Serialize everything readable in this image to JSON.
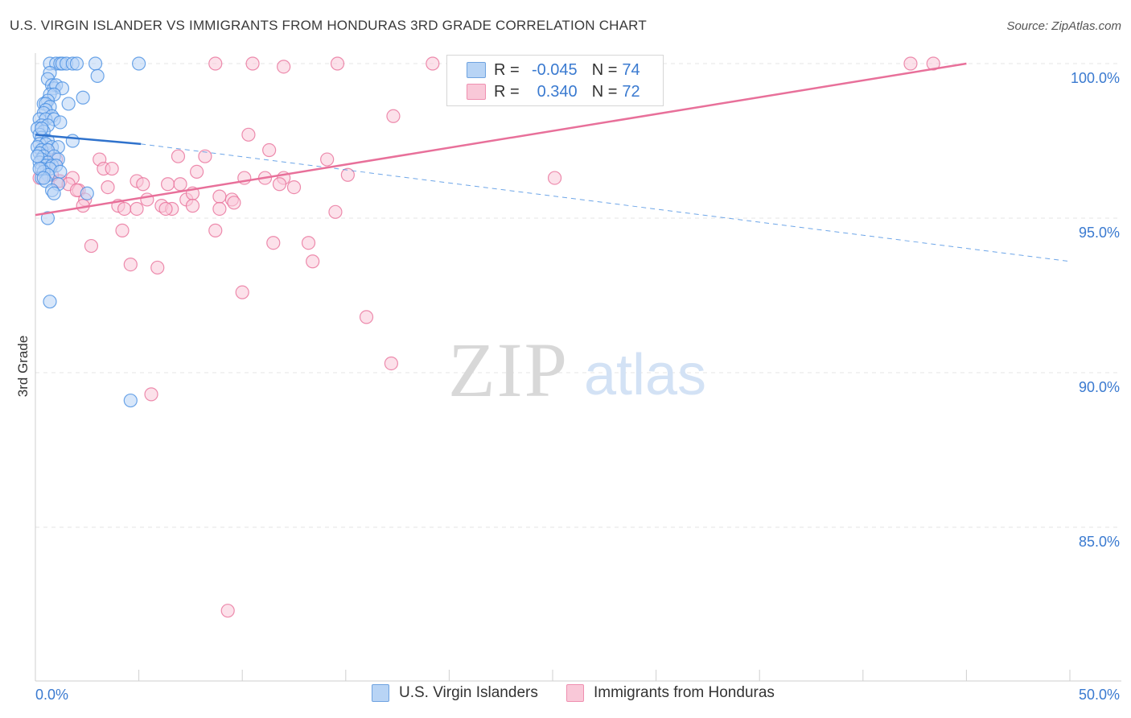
{
  "title": "U.S. VIRGIN ISLANDER VS IMMIGRANTS FROM HONDURAS 3RD GRADE CORRELATION CHART",
  "source": "Source: ZipAtlas.com",
  "watermark": {
    "zip": "ZIP",
    "atlas": "atlas"
  },
  "legend": {
    "r_label": "R =",
    "n_label": "N =",
    "series1": {
      "r": "-0.045",
      "n": "74"
    },
    "series2": {
      "r": "0.340",
      "n": "72"
    }
  },
  "colors": {
    "blue": "#4a90e2",
    "blue_fill": "#b8d4f5",
    "pink": "#e8709a",
    "pink_fill": "#f9c8d8",
    "grid": "#e4e4e4",
    "tick_text": "#3a7ad0"
  },
  "chart_data": {
    "type": "scatter",
    "title": "U.S. VIRGIN ISLANDER VS IMMIGRANTS FROM HONDURAS 3RD GRADE CORRELATION CHART",
    "xlabel": "",
    "ylabel": "3rd Grade",
    "xlim": [
      0,
      50
    ],
    "ylim": [
      80,
      100.8
    ],
    "x_tick_labels": [
      "0.0%",
      "50.0%"
    ],
    "y_ticks": [
      85,
      90,
      95,
      100
    ],
    "y_tick_labels": [
      "85.0%",
      "90.0%",
      "95.0%",
      "100.0%"
    ],
    "grid": true,
    "series": [
      {
        "name": "U.S. Virgin Islanders",
        "r": -0.045,
        "n": 74,
        "trend": {
          "x": [
            0,
            5.1
          ],
          "y": [
            97.7,
            97.4
          ],
          "dashed_to": [
            50,
            93.6
          ]
        },
        "points": [
          [
            0.7,
            100
          ],
          [
            1.0,
            100
          ],
          [
            1.2,
            100
          ],
          [
            1.3,
            100
          ],
          [
            1.5,
            100
          ],
          [
            1.8,
            100
          ],
          [
            2.0,
            100
          ],
          [
            2.9,
            100
          ],
          [
            5.0,
            100
          ],
          [
            0.7,
            99.7
          ],
          [
            3.0,
            99.6
          ],
          [
            0.6,
            99.5
          ],
          [
            0.8,
            99.3
          ],
          [
            0.9,
            99.2
          ],
          [
            1.0,
            99.3
          ],
          [
            1.3,
            99.2
          ],
          [
            0.7,
            99.0
          ],
          [
            0.9,
            99.0
          ],
          [
            0.6,
            98.8
          ],
          [
            2.3,
            98.9
          ],
          [
            0.4,
            98.7
          ],
          [
            0.5,
            98.7
          ],
          [
            1.6,
            98.7
          ],
          [
            0.7,
            98.6
          ],
          [
            0.5,
            98.5
          ],
          [
            0.4,
            98.4
          ],
          [
            0.8,
            98.3
          ],
          [
            0.2,
            98.2
          ],
          [
            0.5,
            98.2
          ],
          [
            0.9,
            98.2
          ],
          [
            1.2,
            98.1
          ],
          [
            0.3,
            98.0
          ],
          [
            0.6,
            98.0
          ],
          [
            0.1,
            97.9
          ],
          [
            0.4,
            97.8
          ],
          [
            0.2,
            97.7
          ],
          [
            0.3,
            97.6
          ],
          [
            0.6,
            97.5
          ],
          [
            1.8,
            97.5
          ],
          [
            0.2,
            97.4
          ],
          [
            0.5,
            97.4
          ],
          [
            0.1,
            97.3
          ],
          [
            0.8,
            97.3
          ],
          [
            1.1,
            97.3
          ],
          [
            0.3,
            97.2
          ],
          [
            0.6,
            97.2
          ],
          [
            0.2,
            97.1
          ],
          [
            0.4,
            97.0
          ],
          [
            0.9,
            97.0
          ],
          [
            0.3,
            96.9
          ],
          [
            1.1,
            96.9
          ],
          [
            0.2,
            96.8
          ],
          [
            0.6,
            96.8
          ],
          [
            0.5,
            96.7
          ],
          [
            0.8,
            96.7
          ],
          [
            1.0,
            96.7
          ],
          [
            0.3,
            96.6
          ],
          [
            0.7,
            96.6
          ],
          [
            0.4,
            96.5
          ],
          [
            1.2,
            96.5
          ],
          [
            0.6,
            96.4
          ],
          [
            0.3,
            96.3
          ],
          [
            0.5,
            96.2
          ],
          [
            1.1,
            96.1
          ],
          [
            0.8,
            95.9
          ],
          [
            2.5,
            95.8
          ],
          [
            0.9,
            95.8
          ],
          [
            0.6,
            95.0
          ],
          [
            0.7,
            92.3
          ],
          [
            4.6,
            89.1
          ],
          [
            0.1,
            97.0
          ],
          [
            0.2,
            96.6
          ],
          [
            0.3,
            97.9
          ],
          [
            0.4,
            96.3
          ]
        ]
      },
      {
        "name": "Immigrants from Honduras",
        "r": 0.34,
        "n": 72,
        "trend": {
          "x": [
            0,
            45
          ],
          "y": [
            95.1,
            100.0
          ]
        },
        "points": [
          [
            8.7,
            100
          ],
          [
            10.5,
            100
          ],
          [
            14.6,
            100
          ],
          [
            19.2,
            100
          ],
          [
            23.7,
            100
          ],
          [
            24.8,
            100
          ],
          [
            42.3,
            100
          ],
          [
            43.4,
            100
          ],
          [
            12.0,
            99.9
          ],
          [
            17.3,
            98.3
          ],
          [
            10.3,
            97.7
          ],
          [
            11.3,
            97.2
          ],
          [
            6.9,
            97.0
          ],
          [
            8.2,
            97.0
          ],
          [
            3.1,
            96.9
          ],
          [
            14.1,
            96.9
          ],
          [
            3.3,
            96.6
          ],
          [
            3.7,
            96.6
          ],
          [
            7.8,
            96.5
          ],
          [
            0.2,
            96.3
          ],
          [
            1.1,
            96.2
          ],
          [
            1.8,
            96.3
          ],
          [
            10.1,
            96.3
          ],
          [
            11.1,
            96.3
          ],
          [
            12.0,
            96.3
          ],
          [
            15.1,
            96.4
          ],
          [
            25.1,
            96.3
          ],
          [
            1.2,
            96.2
          ],
          [
            1.6,
            96.1
          ],
          [
            4.9,
            96.2
          ],
          [
            5.2,
            96.1
          ],
          [
            6.4,
            96.1
          ],
          [
            7.0,
            96.1
          ],
          [
            11.8,
            96.1
          ],
          [
            2.1,
            95.9
          ],
          [
            3.5,
            96.0
          ],
          [
            2.4,
            95.6
          ],
          [
            5.4,
            95.6
          ],
          [
            7.3,
            95.6
          ],
          [
            7.6,
            95.8
          ],
          [
            8.9,
            95.7
          ],
          [
            9.5,
            95.6
          ],
          [
            2.3,
            95.4
          ],
          [
            4.0,
            95.4
          ],
          [
            4.3,
            95.3
          ],
          [
            4.9,
            95.3
          ],
          [
            6.1,
            95.4
          ],
          [
            6.6,
            95.3
          ],
          [
            7.6,
            95.4
          ],
          [
            8.9,
            95.3
          ],
          [
            14.5,
            95.2
          ],
          [
            4.2,
            94.6
          ],
          [
            8.7,
            94.6
          ],
          [
            2.7,
            94.1
          ],
          [
            11.5,
            94.2
          ],
          [
            13.2,
            94.2
          ],
          [
            4.6,
            93.5
          ],
          [
            5.9,
            93.4
          ],
          [
            13.4,
            93.6
          ],
          [
            10.0,
            92.6
          ],
          [
            16.0,
            91.8
          ],
          [
            17.2,
            90.3
          ],
          [
            5.6,
            89.3
          ],
          [
            9.3,
            82.3
          ],
          [
            0.5,
            96.8
          ],
          [
            0.8,
            96.4
          ],
          [
            0.6,
            97.2
          ],
          [
            1.0,
            96.9
          ],
          [
            2.0,
            95.9
          ],
          [
            6.3,
            95.3
          ],
          [
            9.6,
            95.5
          ],
          [
            12.5,
            96.0
          ]
        ]
      }
    ]
  }
}
